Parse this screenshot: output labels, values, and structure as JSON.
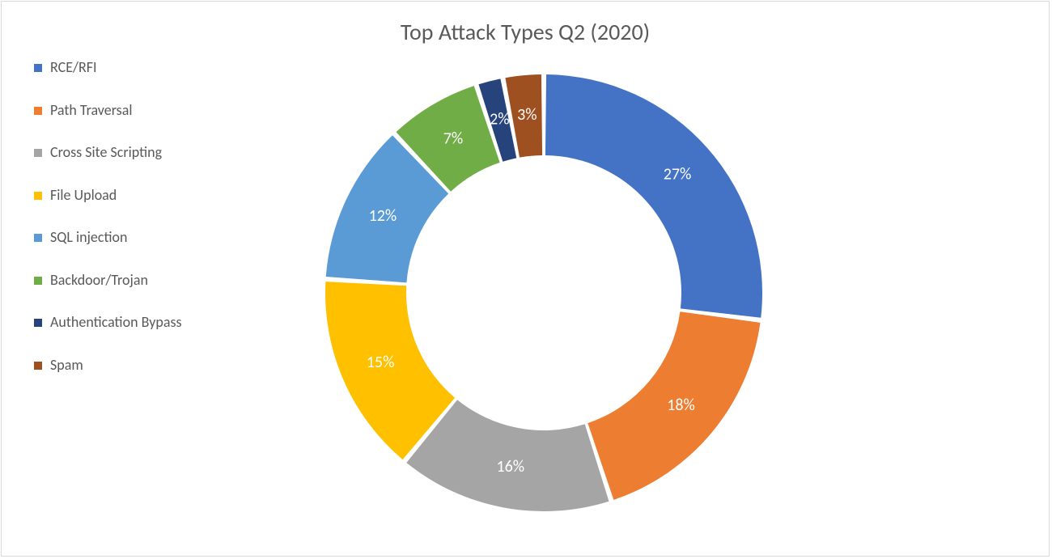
{
  "chart": {
    "type": "donut",
    "title": "Top Attack Types Q2 (2020)",
    "title_fontsize": 28,
    "title_color": "#595959",
    "background_color": "#ffffff",
    "border_color": "#d9d9d9",
    "outer_radius": 270,
    "inner_radius": 170,
    "start_angle_deg": 0,
    "gap_deg": 1.3,
    "label_fontsize": 20,
    "label_color": "#ffffff",
    "legend": {
      "position": "left",
      "fontsize": 18,
      "text_color": "#595959",
      "swatch_size": 10
    },
    "series": [
      {
        "label": "RCE/RFI",
        "value": 27,
        "display": "27%",
        "color": "#4472c4"
      },
      {
        "label": "Path Traversal",
        "value": 18,
        "display": "18%",
        "color": "#ed7d31"
      },
      {
        "label": "Cross Site Scripting",
        "value": 16,
        "display": "16%",
        "color": "#a5a5a5"
      },
      {
        "label": "File Upload",
        "value": 15,
        "display": "15%",
        "color": "#ffc000"
      },
      {
        "label": "SQL injection",
        "value": 12,
        "display": "12%",
        "color": "#5b9bd5"
      },
      {
        "label": "Backdoor/Trojan",
        "value": 7,
        "display": "7%",
        "color": "#70ad47"
      },
      {
        "label": "Authentication Bypass",
        "value": 2,
        "display": "2%",
        "color": "#27437b"
      },
      {
        "label": "Spam",
        "value": 3,
        "display": "3%",
        "color": "#9e5020"
      }
    ]
  }
}
